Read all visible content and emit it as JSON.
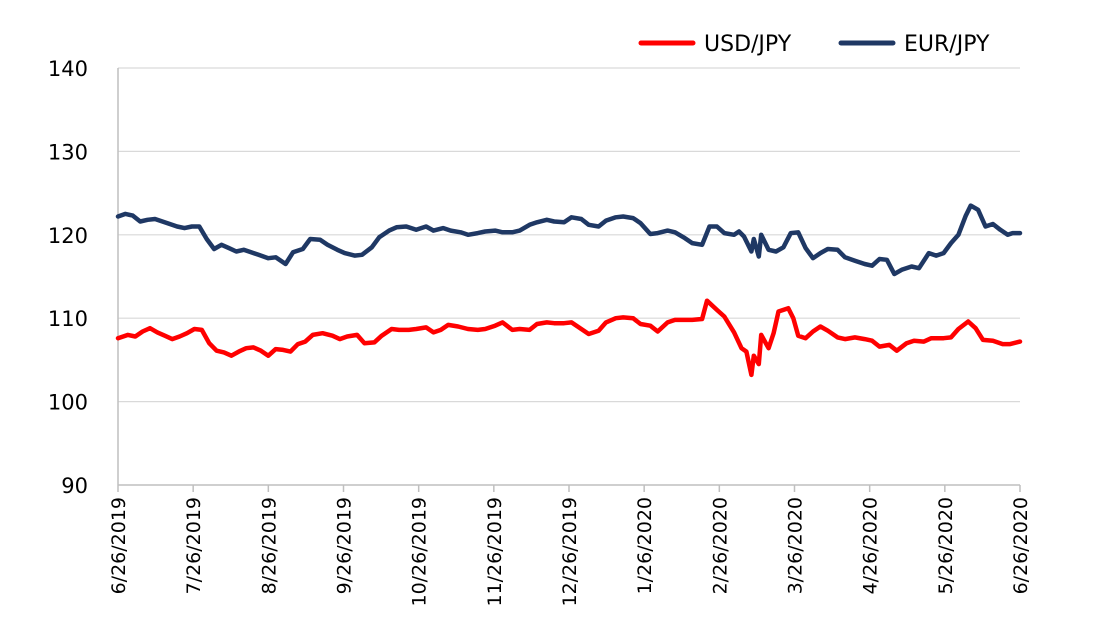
{
  "chart_data": {
    "type": "line",
    "title": "",
    "xlabel": "",
    "ylabel": "",
    "ylim": [
      90,
      140
    ],
    "yticks": [
      90,
      100,
      110,
      120,
      130,
      140
    ],
    "x_range": [
      "2019-06-26",
      "2020-06-26"
    ],
    "xticks": [
      "6/26/2019",
      "7/26/2019",
      "8/26/2019",
      "9/26/2019",
      "10/26/2019",
      "11/26/2019",
      "12/26/2019",
      "1/26/2020",
      "2/26/2020",
      "3/26/2020",
      "4/26/2020",
      "5/26/2020",
      "6/26/2020"
    ],
    "grid": "horizontal",
    "legend": "top-right",
    "series": [
      {
        "name": "USD/JPY",
        "color": "#ff0000",
        "points": [
          [
            "2019-06-26",
            107.6
          ],
          [
            "2019-06-30",
            108.0
          ],
          [
            "2019-07-03",
            107.8
          ],
          [
            "2019-07-06",
            108.4
          ],
          [
            "2019-07-09",
            108.8
          ],
          [
            "2019-07-12",
            108.3
          ],
          [
            "2019-07-15",
            107.9
          ],
          [
            "2019-07-18",
            107.5
          ],
          [
            "2019-07-21",
            107.8
          ],
          [
            "2019-07-24",
            108.2
          ],
          [
            "2019-07-27",
            108.7
          ],
          [
            "2019-07-30",
            108.6
          ],
          [
            "2019-08-02",
            107.0
          ],
          [
            "2019-08-05",
            106.1
          ],
          [
            "2019-08-08",
            105.9
          ],
          [
            "2019-08-11",
            105.5
          ],
          [
            "2019-08-14",
            106.0
          ],
          [
            "2019-08-17",
            106.4
          ],
          [
            "2019-08-20",
            106.5
          ],
          [
            "2019-08-23",
            106.1
          ],
          [
            "2019-08-26",
            105.5
          ],
          [
            "2019-08-29",
            106.3
          ],
          [
            "2019-09-01",
            106.2
          ],
          [
            "2019-09-04",
            106.0
          ],
          [
            "2019-09-07",
            106.9
          ],
          [
            "2019-09-10",
            107.2
          ],
          [
            "2019-09-13",
            108.0
          ],
          [
            "2019-09-17",
            108.2
          ],
          [
            "2019-09-21",
            107.9
          ],
          [
            "2019-09-24",
            107.5
          ],
          [
            "2019-09-27",
            107.8
          ],
          [
            "2019-10-01",
            108.0
          ],
          [
            "2019-10-04",
            107.0
          ],
          [
            "2019-10-08",
            107.1
          ],
          [
            "2019-10-11",
            107.9
          ],
          [
            "2019-10-15",
            108.7
          ],
          [
            "2019-10-18",
            108.6
          ],
          [
            "2019-10-22",
            108.6
          ],
          [
            "2019-10-25",
            108.7
          ],
          [
            "2019-10-29",
            108.9
          ],
          [
            "2019-11-01",
            108.3
          ],
          [
            "2019-11-04",
            108.6
          ],
          [
            "2019-11-07",
            109.2
          ],
          [
            "2019-11-11",
            109.0
          ],
          [
            "2019-11-15",
            108.7
          ],
          [
            "2019-11-19",
            108.6
          ],
          [
            "2019-11-22",
            108.7
          ],
          [
            "2019-11-26",
            109.1
          ],
          [
            "2019-11-29",
            109.5
          ],
          [
            "2019-12-03",
            108.6
          ],
          [
            "2019-12-06",
            108.7
          ],
          [
            "2019-12-10",
            108.6
          ],
          [
            "2019-12-13",
            109.3
          ],
          [
            "2019-12-17",
            109.5
          ],
          [
            "2019-12-20",
            109.4
          ],
          [
            "2019-12-24",
            109.4
          ],
          [
            "2019-12-27",
            109.5
          ],
          [
            "2019-12-31",
            108.7
          ],
          [
            "2020-01-03",
            108.1
          ],
          [
            "2020-01-07",
            108.5
          ],
          [
            "2020-01-10",
            109.5
          ],
          [
            "2020-01-14",
            110.0
          ],
          [
            "2020-01-17",
            110.1
          ],
          [
            "2020-01-21",
            110.0
          ],
          [
            "2020-01-24",
            109.3
          ],
          [
            "2020-01-28",
            109.1
          ],
          [
            "2020-01-31",
            108.4
          ],
          [
            "2020-02-04",
            109.5
          ],
          [
            "2020-02-07",
            109.8
          ],
          [
            "2020-02-11",
            109.8
          ],
          [
            "2020-02-14",
            109.8
          ],
          [
            "2020-02-18",
            109.9
          ],
          [
            "2020-02-20",
            112.1
          ],
          [
            "2020-02-24",
            111.0
          ],
          [
            "2020-02-27",
            110.2
          ],
          [
            "2020-03-02",
            108.3
          ],
          [
            "2020-03-05",
            106.4
          ],
          [
            "2020-03-07",
            106.0
          ],
          [
            "2020-03-09",
            103.2
          ],
          [
            "2020-03-10",
            105.5
          ],
          [
            "2020-03-12",
            104.5
          ],
          [
            "2020-03-13",
            108.0
          ],
          [
            "2020-03-16",
            106.4
          ],
          [
            "2020-03-18",
            108.2
          ],
          [
            "2020-03-20",
            110.8
          ],
          [
            "2020-03-24",
            111.2
          ],
          [
            "2020-03-26",
            110.0
          ],
          [
            "2020-03-28",
            107.9
          ],
          [
            "2020-03-31",
            107.6
          ],
          [
            "2020-04-03",
            108.4
          ],
          [
            "2020-04-06",
            109.0
          ],
          [
            "2020-04-09",
            108.5
          ],
          [
            "2020-04-13",
            107.7
          ],
          [
            "2020-04-16",
            107.5
          ],
          [
            "2020-04-20",
            107.7
          ],
          [
            "2020-04-24",
            107.5
          ],
          [
            "2020-04-27",
            107.3
          ],
          [
            "2020-04-30",
            106.6
          ],
          [
            "2020-05-04",
            106.8
          ],
          [
            "2020-05-07",
            106.1
          ],
          [
            "2020-05-11",
            107.0
          ],
          [
            "2020-05-14",
            107.3
          ],
          [
            "2020-05-18",
            107.2
          ],
          [
            "2020-05-21",
            107.6
          ],
          [
            "2020-05-26",
            107.6
          ],
          [
            "2020-05-29",
            107.7
          ],
          [
            "2020-06-01",
            108.7
          ],
          [
            "2020-06-05",
            109.6
          ],
          [
            "2020-06-08",
            108.8
          ],
          [
            "2020-06-11",
            107.4
          ],
          [
            "2020-06-15",
            107.3
          ],
          [
            "2020-06-19",
            106.9
          ],
          [
            "2020-06-22",
            106.9
          ],
          [
            "2020-06-26",
            107.2
          ]
        ]
      },
      {
        "name": "EUR/JPY",
        "color": "#1f3864",
        "points": [
          [
            "2019-06-26",
            122.2
          ],
          [
            "2019-06-29",
            122.5
          ],
          [
            "2019-07-02",
            122.3
          ],
          [
            "2019-07-05",
            121.6
          ],
          [
            "2019-07-08",
            121.8
          ],
          [
            "2019-07-11",
            121.9
          ],
          [
            "2019-07-14",
            121.6
          ],
          [
            "2019-07-17",
            121.3
          ],
          [
            "2019-07-20",
            121.0
          ],
          [
            "2019-07-23",
            120.8
          ],
          [
            "2019-07-26",
            121.0
          ],
          [
            "2019-07-29",
            121.0
          ],
          [
            "2019-08-01",
            119.5
          ],
          [
            "2019-08-04",
            118.3
          ],
          [
            "2019-08-07",
            118.8
          ],
          [
            "2019-08-10",
            118.4
          ],
          [
            "2019-08-13",
            118.0
          ],
          [
            "2019-08-16",
            118.2
          ],
          [
            "2019-08-19",
            117.9
          ],
          [
            "2019-08-22",
            117.6
          ],
          [
            "2019-08-26",
            117.2
          ],
          [
            "2019-08-29",
            117.3
          ],
          [
            "2019-09-02",
            116.5
          ],
          [
            "2019-09-05",
            117.9
          ],
          [
            "2019-09-09",
            118.3
          ],
          [
            "2019-09-12",
            119.5
          ],
          [
            "2019-09-16",
            119.4
          ],
          [
            "2019-09-19",
            118.8
          ],
          [
            "2019-09-23",
            118.2
          ],
          [
            "2019-09-26",
            117.8
          ],
          [
            "2019-09-30",
            117.5
          ],
          [
            "2019-10-03",
            117.6
          ],
          [
            "2019-10-07",
            118.5
          ],
          [
            "2019-10-10",
            119.7
          ],
          [
            "2019-10-14",
            120.5
          ],
          [
            "2019-10-17",
            120.9
          ],
          [
            "2019-10-21",
            121.0
          ],
          [
            "2019-10-25",
            120.6
          ],
          [
            "2019-10-29",
            121.0
          ],
          [
            "2019-11-01",
            120.5
          ],
          [
            "2019-11-05",
            120.8
          ],
          [
            "2019-11-08",
            120.5
          ],
          [
            "2019-11-12",
            120.3
          ],
          [
            "2019-11-15",
            120.0
          ],
          [
            "2019-11-19",
            120.2
          ],
          [
            "2019-11-22",
            120.4
          ],
          [
            "2019-11-26",
            120.5
          ],
          [
            "2019-11-29",
            120.3
          ],
          [
            "2019-12-03",
            120.3
          ],
          [
            "2019-12-06",
            120.5
          ],
          [
            "2019-12-10",
            121.2
          ],
          [
            "2019-12-13",
            121.5
          ],
          [
            "2019-12-17",
            121.8
          ],
          [
            "2019-12-20",
            121.6
          ],
          [
            "2019-12-24",
            121.5
          ],
          [
            "2019-12-27",
            122.1
          ],
          [
            "2019-12-31",
            121.9
          ],
          [
            "2020-01-03",
            121.2
          ],
          [
            "2020-01-07",
            121.0
          ],
          [
            "2020-01-10",
            121.7
          ],
          [
            "2020-01-14",
            122.1
          ],
          [
            "2020-01-17",
            122.2
          ],
          [
            "2020-01-21",
            122.0
          ],
          [
            "2020-01-24",
            121.4
          ],
          [
            "2020-01-28",
            120.1
          ],
          [
            "2020-01-31",
            120.2
          ],
          [
            "2020-02-04",
            120.5
          ],
          [
            "2020-02-07",
            120.3
          ],
          [
            "2020-02-11",
            119.6
          ],
          [
            "2020-02-14",
            119.0
          ],
          [
            "2020-02-18",
            118.8
          ],
          [
            "2020-02-21",
            121.0
          ],
          [
            "2020-02-24",
            121.0
          ],
          [
            "2020-02-27",
            120.2
          ],
          [
            "2020-03-02",
            120.0
          ],
          [
            "2020-03-04",
            120.4
          ],
          [
            "2020-03-06",
            119.8
          ],
          [
            "2020-03-09",
            118.0
          ],
          [
            "2020-03-10",
            119.5
          ],
          [
            "2020-03-12",
            117.4
          ],
          [
            "2020-03-13",
            120.0
          ],
          [
            "2020-03-16",
            118.2
          ],
          [
            "2020-03-19",
            118.0
          ],
          [
            "2020-03-22",
            118.5
          ],
          [
            "2020-03-25",
            120.2
          ],
          [
            "2020-03-28",
            120.3
          ],
          [
            "2020-03-31",
            118.4
          ],
          [
            "2020-04-03",
            117.2
          ],
          [
            "2020-04-06",
            117.8
          ],
          [
            "2020-04-09",
            118.3
          ],
          [
            "2020-04-13",
            118.2
          ],
          [
            "2020-04-16",
            117.3
          ],
          [
            "2020-04-20",
            116.9
          ],
          [
            "2020-04-24",
            116.5
          ],
          [
            "2020-04-27",
            116.3
          ],
          [
            "2020-04-30",
            117.1
          ],
          [
            "2020-05-03",
            117.0
          ],
          [
            "2020-05-06",
            115.3
          ],
          [
            "2020-05-09",
            115.8
          ],
          [
            "2020-05-13",
            116.2
          ],
          [
            "2020-05-16",
            116.0
          ],
          [
            "2020-05-20",
            117.8
          ],
          [
            "2020-05-23",
            117.5
          ],
          [
            "2020-05-26",
            117.8
          ],
          [
            "2020-05-29",
            119.0
          ],
          [
            "2020-06-01",
            120.0
          ],
          [
            "2020-06-04",
            122.3
          ],
          [
            "2020-06-06",
            123.5
          ],
          [
            "2020-06-09",
            123.0
          ],
          [
            "2020-06-12",
            121.0
          ],
          [
            "2020-06-15",
            121.3
          ],
          [
            "2020-06-18",
            120.6
          ],
          [
            "2020-06-21",
            120.0
          ],
          [
            "2020-06-23",
            120.2
          ],
          [
            "2020-06-26",
            120.2
          ]
        ]
      }
    ]
  }
}
